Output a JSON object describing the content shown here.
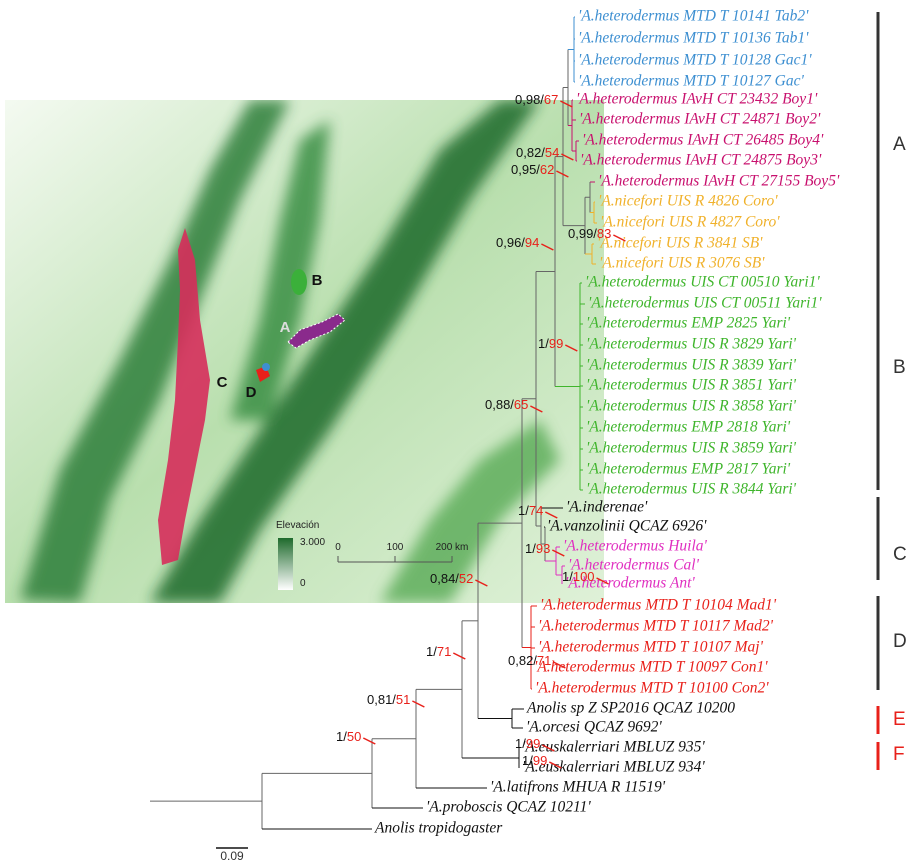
{
  "tree": {
    "tips": [
      {
        "label": "'A.heterodermus MTD T 10141 Tab2'",
        "color": "#3d8fd1"
      },
      {
        "label": "'A.heterodermus MTD T 10136 Tab1'",
        "color": "#3d8fd1"
      },
      {
        "label": "'A.heterodermus MTD T 10128 Gac1'",
        "color": "#3d8fd1"
      },
      {
        "label": "'A.heterodermus MTD T 10127 Gac'",
        "color": "#3d8fd1"
      },
      {
        "label": "'A.heterodermus IAvH CT 23432 Boy1'",
        "color": "#c8106e"
      },
      {
        "label": "'A.heterodermus IAvH CT 24871 Boy2'",
        "color": "#c8106e"
      },
      {
        "label": "'A.heterodermus IAvH CT 26485 Boy4'",
        "color": "#c8106e"
      },
      {
        "label": "'A.heterodermus IAvH CT 24875 Boy3'",
        "color": "#c8106e"
      },
      {
        "label": "'A.heterodermus IAvH CT 27155 Boy5'",
        "color": "#c8106e"
      },
      {
        "label": "'A.nicefori UIS R 4826 Coro'",
        "color": "#f0b12a"
      },
      {
        "label": "'A.nicefori UIS R 4827 Coro'",
        "color": "#f0b12a"
      },
      {
        "label": "'A.nicefori UIS R 3841 SB'",
        "color": "#f0b12a"
      },
      {
        "label": "'A.nicefori UIS R 3076 SB'",
        "color": "#f0b12a"
      },
      {
        "label": "'A.heterodermus UIS CT 00510 Yari1'",
        "color": "#3fb52c"
      },
      {
        "label": "'A.heterodermus UIS CT 00511 Yari1'",
        "color": "#3fb52c"
      },
      {
        "label": "'A.heterodermus EMP 2825 Yari'",
        "color": "#3fb52c"
      },
      {
        "label": "'A.heterodermus UIS R 3829 Yari'",
        "color": "#3fb52c"
      },
      {
        "label": "'A.heterodermus UIS R 3839 Yari'",
        "color": "#3fb52c"
      },
      {
        "label": "'A.heterodermus UIS R 3851 Yari'",
        "color": "#3fb52c"
      },
      {
        "label": "'A.heterodermus UIS R 3858 Yari'",
        "color": "#3fb52c"
      },
      {
        "label": "'A.heterodermus EMP 2818 Yari'",
        "color": "#3fb52c"
      },
      {
        "label": "'A.heterodermus UIS R 3859 Yari'",
        "color": "#3fb52c"
      },
      {
        "label": "'A.heterodermus EMP 2817 Yari'",
        "color": "#3fb52c"
      },
      {
        "label": "'A.heterodermus UIS R 3844 Yari'",
        "color": "#3fb52c"
      },
      {
        "label": "'A.inderenae'",
        "color": "#111111"
      },
      {
        "label": "'A.vanzolinii QCAZ 6926'",
        "color": "#111111"
      },
      {
        "label": "'A.heterodermus Huila'",
        "color": "#e02fc0"
      },
      {
        "label": "'A.heterodermus Cal'",
        "color": "#e02fc0"
      },
      {
        "label": "'A.heterodermus Ant'",
        "color": "#e02fc0"
      },
      {
        "label": "'A.heterodermus MTD T 10104 Mad1'",
        "color": "#e8201a"
      },
      {
        "label": "'A.heterodermus MTD T 10117 Mad2'",
        "color": "#e8201a"
      },
      {
        "label": "'A.heterodermus MTD T 10107 Maj'",
        "color": "#e8201a"
      },
      {
        "label": "'A.heterodermus MTD T 10097 Con1'",
        "color": "#e8201a"
      },
      {
        "label": "'A.heterodermus MTD T 10100 Con2'",
        "color": "#e8201a"
      },
      {
        "label": "Anolis sp Z SP2016 QCAZ 10200",
        "color": "#111111"
      },
      {
        "label": "'A.orcesi QCAZ 9692'",
        "color": "#111111"
      },
      {
        "label": "'A.euskalerriari MBLUZ 935'",
        "color": "#111111"
      },
      {
        "label": "'A.euskalerriari MBLUZ 934'",
        "color": "#111111"
      },
      {
        "label": "'A.latifrons MHUA R 11519'",
        "color": "#111111"
      },
      {
        "label": "'A.proboscis QCAZ 10211'",
        "color": "#111111"
      },
      {
        "label": "Anolis tropidogaster",
        "color": "#111111"
      }
    ],
    "support": [
      {
        "pp": "0,98/",
        "bs": "67"
      },
      {
        "pp": "0,82/",
        "bs": "54"
      },
      {
        "pp": "0,95/",
        "bs": "62"
      },
      {
        "pp": "0,99/",
        "bs": "83"
      },
      {
        "pp": "0,96/",
        "bs": "94"
      },
      {
        "pp": "1/",
        "bs": "99"
      },
      {
        "pp": "0,88/",
        "bs": "65"
      },
      {
        "pp": "1/",
        "bs": "74"
      },
      {
        "pp": "1/",
        "bs": "93"
      },
      {
        "pp": "1/",
        "bs": "100"
      },
      {
        "pp": "0,84/",
        "bs": "52"
      },
      {
        "pp": "0,82/",
        "bs": "71"
      },
      {
        "pp": "1/",
        "bs": "71"
      },
      {
        "pp": "1/",
        "bs": "99"
      },
      {
        "pp": "1/",
        "bs": "99"
      },
      {
        "pp": "0,81/",
        "bs": "51"
      },
      {
        "pp": "1/",
        "bs": "50"
      }
    ],
    "scale_bar": "0.09"
  },
  "clades": [
    {
      "label": "A",
      "color": "#333333"
    },
    {
      "label": "B",
      "color": "#333333"
    },
    {
      "label": "C",
      "color": "#333333"
    },
    {
      "label": "D",
      "color": "#333333"
    },
    {
      "label": "E",
      "color": "#e8201a"
    },
    {
      "label": "F",
      "color": "#e8201a"
    }
  ],
  "map": {
    "labels": [
      "A",
      "B",
      "C",
      "D"
    ],
    "legend": {
      "title": "Elevación",
      "max": "3.000",
      "min": "0"
    },
    "scale": [
      "0",
      "100",
      "200 km"
    ]
  }
}
